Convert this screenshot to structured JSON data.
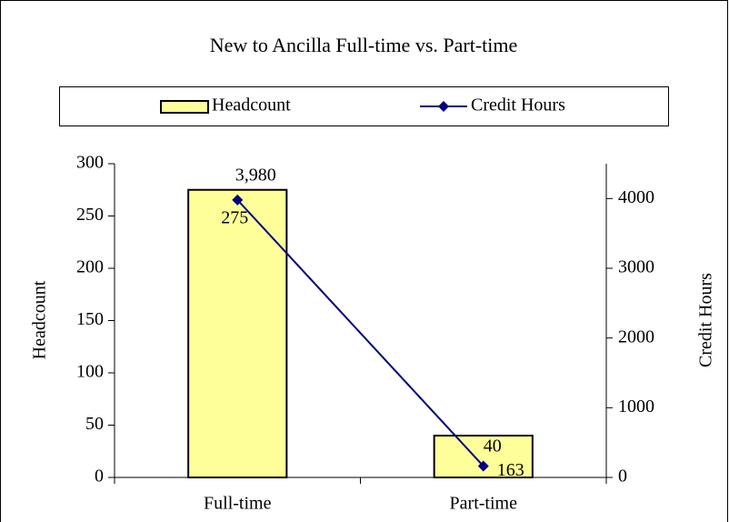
{
  "chart_data": {
    "type": "bar",
    "title": "New to Ancilla Full-time vs. Part-time",
    "categories": [
      "Full-time",
      "Part-time"
    ],
    "series": [
      {
        "name": "Headcount",
        "type": "bar",
        "color": "#ffff99",
        "values": [
          275,
          40
        ]
      },
      {
        "name": "Credit Hours",
        "type": "line",
        "axis": "y2",
        "color": "#000080",
        "values": [
          3980,
          163
        ],
        "value_labels": [
          "3,980",
          "163"
        ]
      }
    ],
    "ylabel": "Headcount",
    "y2label": "Credit Hours",
    "ylim": [
      0,
      300
    ],
    "yticks": [
      0,
      50,
      100,
      150,
      200,
      250,
      300
    ],
    "y2lim": [
      0,
      4500
    ],
    "y2ticks": [
      0,
      1000,
      2000,
      3000,
      4000
    ],
    "legend": "top",
    "grid": false
  }
}
